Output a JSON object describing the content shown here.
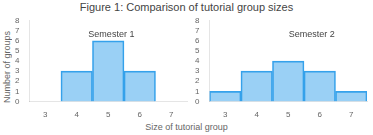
{
  "chart_data": [
    {
      "type": "bar",
      "title": "Figure 1: Comparison of tutorial group sizes",
      "xlabel": "Size of tutorial group",
      "ylabel": "Number of groups",
      "annotations": [
        "Semester 1"
      ],
      "x": [
        4,
        5,
        6
      ],
      "values": [
        3,
        6,
        3
      ],
      "xlim": [
        2.5,
        7.5
      ],
      "xticks": [
        3,
        4,
        5,
        6,
        7
      ],
      "ylim": [
        0,
        8
      ],
      "yticks": [
        0,
        1,
        2,
        3,
        4,
        5,
        6,
        7,
        8
      ],
      "grid": false
    },
    {
      "type": "bar",
      "annotations": [
        "Semester 2"
      ],
      "x": [
        3,
        4,
        5,
        6,
        7
      ],
      "values": [
        1,
        3,
        4,
        3,
        1
      ],
      "xlim": [
        2.5,
        7.5
      ],
      "xticks": [
        3,
        4,
        5,
        6,
        7
      ],
      "ylim": [
        0,
        8
      ],
      "yticks": [
        0,
        1,
        2,
        3,
        4,
        5,
        6,
        7,
        8
      ],
      "grid": false
    }
  ]
}
